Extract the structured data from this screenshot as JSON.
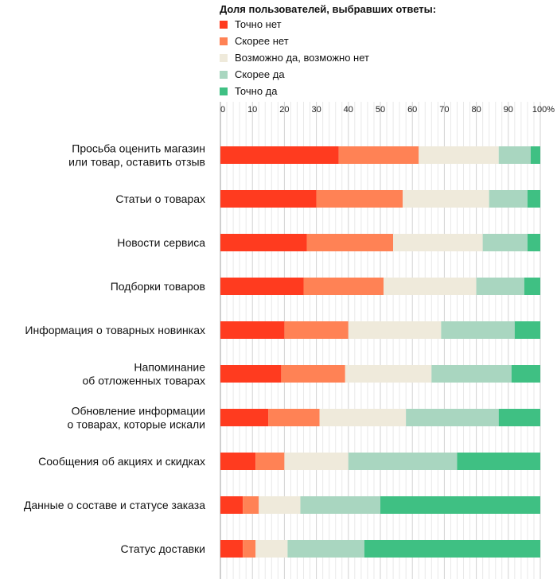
{
  "chart_data": {
    "type": "bar",
    "orientation": "horizontal",
    "stacked": true,
    "legend_title": "Доля пользователей, выбравших ответы:",
    "legend_placement": "top",
    "tick_unit": "%",
    "xlim": [
      0,
      100
    ],
    "x_ticks": [
      0,
      10,
      20,
      30,
      40,
      50,
      60,
      70,
      80,
      90,
      100
    ],
    "categories": [
      "Просьба оценить магазин\nили товар, оставить отзыв",
      "Статьи о товарах",
      "Новости сервиса",
      "Подборки товаров",
      "Информация о товарных новинках",
      "Напоминание\nоб отложенных товарах",
      "Обновление информации\nо товарах, которые искали",
      "Сообщения об акциях и скидках",
      "Данные о составе и статусе заказа",
      "Статус доставки"
    ],
    "series": [
      {
        "name": "Точно нет",
        "color": "#ff3b1f",
        "values": [
          37,
          30,
          27,
          26,
          20,
          19,
          15,
          11,
          7,
          7
        ]
      },
      {
        "name": "Скорее нет",
        "color": "#ff8255",
        "values": [
          25,
          27,
          27,
          25,
          20,
          20,
          16,
          9,
          5,
          4
        ]
      },
      {
        "name": "Возможно да, возможно нет",
        "color": "#efeadb",
        "values": [
          25,
          27,
          28,
          29,
          29,
          27,
          27,
          20,
          13,
          10
        ]
      },
      {
        "name": "Скорее да",
        "color": "#a9d6c0",
        "values": [
          10,
          12,
          14,
          15,
          23,
          25,
          29,
          34,
          25,
          24
        ]
      },
      {
        "name": "Точно да",
        "color": "#3fc083",
        "values": [
          3,
          4,
          4,
          5,
          8,
          9,
          13,
          26,
          50,
          55
        ]
      }
    ],
    "grid": true
  }
}
